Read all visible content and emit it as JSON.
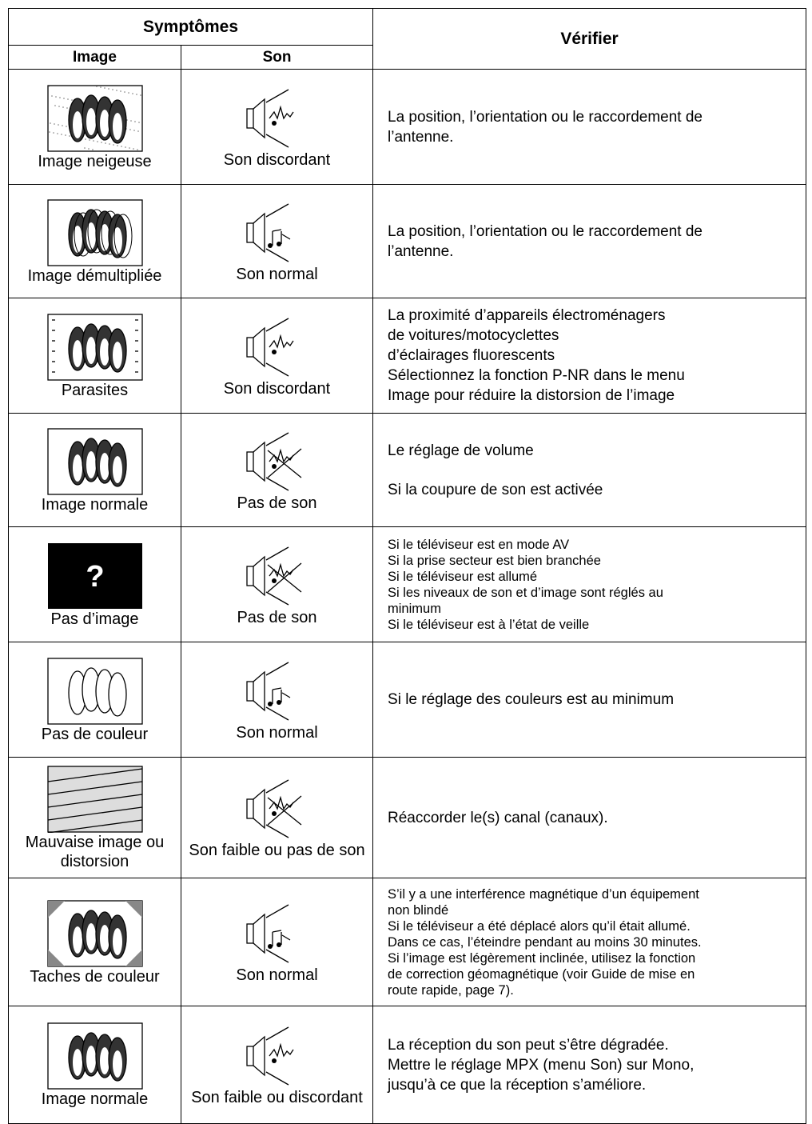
{
  "header": {
    "symptoms": "Symptômes",
    "image": "Image",
    "sound": "Son",
    "check": "Vérifier"
  },
  "rows": [
    {
      "image": "Image neigeuse",
      "sound": "Son discordant",
      "check": [
        "La position, l’orientation ou le raccordement de",
        "l’antenne."
      ]
    },
    {
      "image": "Image démultipliée",
      "sound": "Son normal",
      "check": [
        "La position, l’orientation ou le raccordement de",
        "l’antenne."
      ]
    },
    {
      "image": "Parasites",
      "sound": "Son discordant",
      "check": [
        "La proximité d’appareils électroménagers",
        "de voitures/motocyclettes",
        "d’éclairages fluorescents",
        "Sélectionnez la fonction P-NR dans le menu",
        "Image pour réduire la distorsion de l’image"
      ]
    },
    {
      "image": "Image normale",
      "sound": "Pas de son",
      "check": [
        "Le réglage de volume",
        "Si la coupure de son est activée"
      ]
    },
    {
      "image": "Pas d’image",
      "icon_text": "?",
      "sound": "Pas de son",
      "check": [
        "Si le téléviseur est en mode AV",
        "Si la prise secteur est bien branchée",
        "Si le téléviseur est allumé",
        "Si les niveaux de son et d’image sont réglés au",
        "minimum",
        "Si le téléviseur est à l’état de veille"
      ]
    },
    {
      "image": "Pas de couleur",
      "sound": "Son normal",
      "check": [
        "Si le réglage des couleurs est au minimum"
      ]
    },
    {
      "image": "Mauvaise image ou distorsion",
      "sound": "Son faible ou pas de son",
      "check": [
        "Réaccorder le(s) canal (canaux)."
      ]
    },
    {
      "image": "Taches de couleur",
      "sound": "Son normal",
      "check": [
        "S’il y a une interférence magnétique d’un équipement",
        "non blindé",
        "Si le téléviseur a été déplacé alors qu’il était allumé.",
        "Dans ce cas, l’éteindre pendant au moins 30 minutes.",
        "Si l’image est légèrement inclinée, utilisez la fonction",
        "de correction géomagnétique (voir Guide de mise en",
        "route rapide, page 7)."
      ]
    },
    {
      "image": "Image normale",
      "sound": "Son faible ou discordant",
      "check": [
        "La réception du son peut s’être dégradée.",
        "Mettre le réglage MPX (menu Son) sur Mono,",
        "jusqu’à ce que la réception s’améliore."
      ]
    }
  ]
}
